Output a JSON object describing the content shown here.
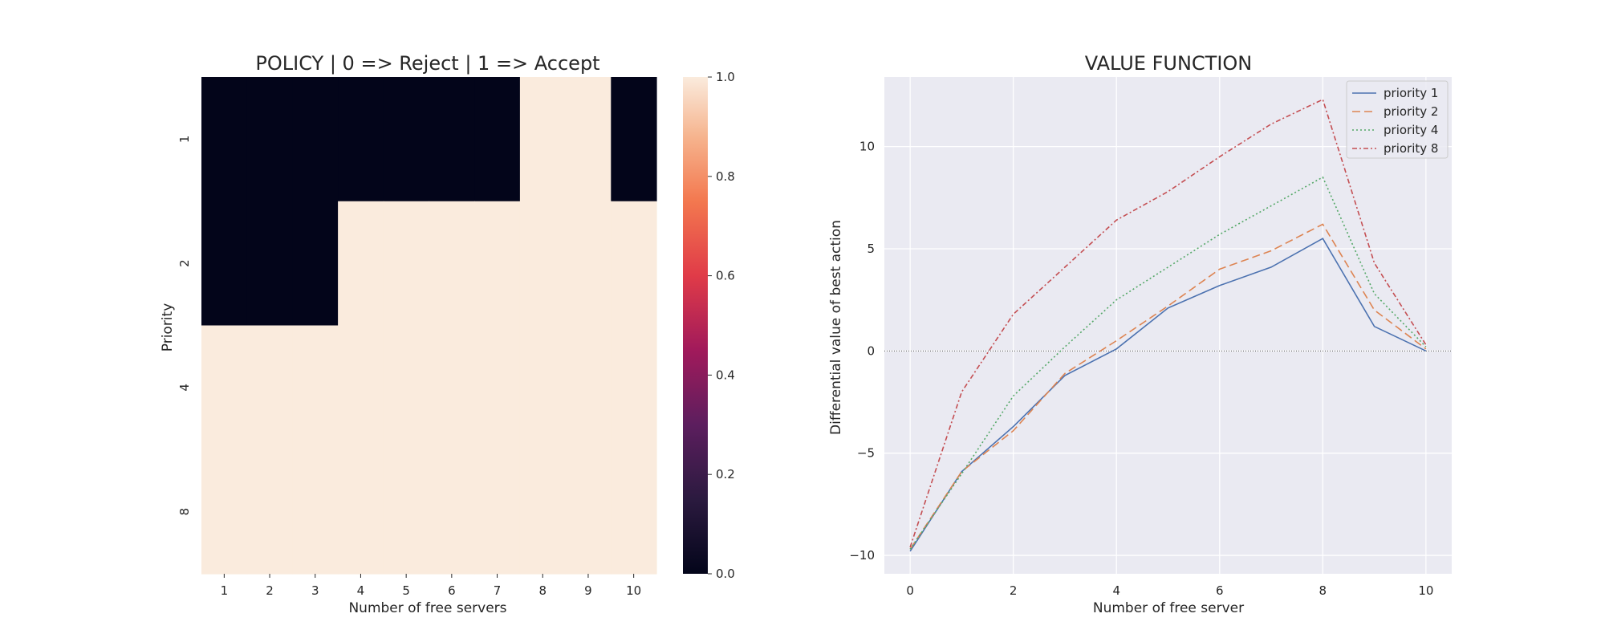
{
  "chart_data": [
    {
      "type": "heatmap",
      "title": "POLICY | 0 => Reject | 1 => Accept",
      "xlabel": "Number of free servers",
      "ylabel": "Priority",
      "x_categories": [
        "1",
        "2",
        "3",
        "4",
        "5",
        "6",
        "7",
        "8",
        "9",
        "10"
      ],
      "y_categories": [
        "1",
        "2",
        "4",
        "8"
      ],
      "values": [
        [
          0,
          0,
          0,
          0,
          0,
          0,
          0,
          1,
          1,
          0
        ],
        [
          0,
          0,
          0,
          1,
          1,
          1,
          1,
          1,
          1,
          1
        ],
        [
          1,
          1,
          1,
          1,
          1,
          1,
          1,
          1,
          1,
          1
        ],
        [
          1,
          1,
          1,
          1,
          1,
          1,
          1,
          1,
          1,
          1
        ]
      ],
      "colorbar": {
        "range": [
          0,
          1
        ],
        "ticks": [
          "0.0",
          "0.2",
          "0.4",
          "0.6",
          "0.8",
          "1.0"
        ],
        "low_color": "#03051a",
        "high_color": "#faebdd"
      }
    },
    {
      "type": "line",
      "title": "VALUE FUNCTION",
      "xlabel": "Number of free server",
      "ylabel": "Differential value of best action",
      "x": [
        0,
        1,
        2,
        3,
        4,
        5,
        6,
        7,
        8,
        9,
        10
      ],
      "xlim": [
        -0.5,
        10.5
      ],
      "ylim": [
        -10.9,
        13.4
      ],
      "xticks": [
        "0",
        "2",
        "4",
        "6",
        "8",
        "10"
      ],
      "yticks": [
        "−10",
        "−5",
        "0",
        "5",
        "10"
      ],
      "legend_position": "top-right",
      "reference_line_y": 0,
      "series": [
        {
          "name": "priority 1",
          "color": "#4c72b0",
          "dash": "",
          "values": [
            -9.8,
            -5.9,
            -3.7,
            -1.2,
            0.1,
            2.1,
            3.2,
            4.1,
            5.5,
            1.2,
            0.0
          ]
        },
        {
          "name": "priority 2",
          "color": "#dd8452",
          "dash": "10,5",
          "values": [
            -9.7,
            -5.9,
            -3.9,
            -1.1,
            0.5,
            2.2,
            4.0,
            4.9,
            6.2,
            2.0,
            0.1
          ]
        },
        {
          "name": "priority 4",
          "color": "#55a868",
          "dash": "2,3",
          "values": [
            -9.7,
            -6.0,
            -2.2,
            0.2,
            2.5,
            4.1,
            5.7,
            7.1,
            8.5,
            2.8,
            0.2
          ]
        },
        {
          "name": "priority 8",
          "color": "#c44e52",
          "dash": "6,3,2,3",
          "values": [
            -9.6,
            -2.0,
            1.8,
            4.1,
            6.4,
            7.8,
            9.5,
            11.1,
            12.3,
            4.3,
            0.3
          ]
        }
      ]
    }
  ]
}
